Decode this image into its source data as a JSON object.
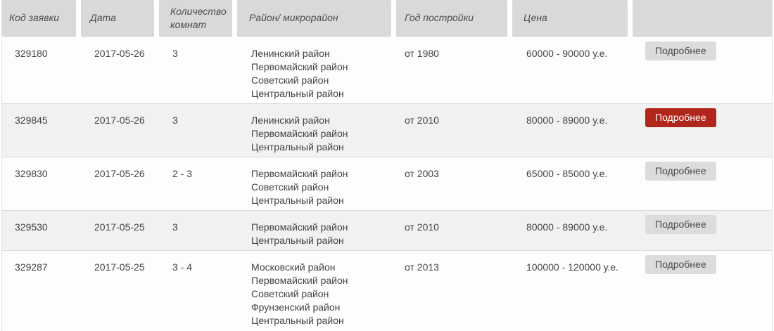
{
  "colors": {
    "accent_red": "#b1261a",
    "header_cell_bg": "#d9d9d9",
    "row_alt_bg": "#f1f1f1"
  },
  "table": {
    "headers": [
      {
        "label": "Код заявки"
      },
      {
        "label": "Дата"
      },
      {
        "label": "Количество комнат"
      },
      {
        "label": "Район/ микрорайон"
      },
      {
        "label": "Год постройки"
      },
      {
        "label": "Цена"
      },
      {
        "label": ""
      }
    ],
    "details_button_label": "Подробнее",
    "rows": [
      {
        "code": "329180",
        "date": "2017-05-26",
        "rooms": "3",
        "districts": [
          "Ленинский район",
          "Первомайский район",
          "Советский район",
          "Центральный район"
        ],
        "year": "от 1980",
        "price": "60000 - 90000 у.е.",
        "highlighted": false
      },
      {
        "code": "329845",
        "date": "2017-05-26",
        "rooms": "3",
        "districts": [
          "Ленинский район",
          "Первомайский район",
          "Центральный район"
        ],
        "year": "от 2010",
        "price": "80000 - 89000 у.е.",
        "highlighted": true
      },
      {
        "code": "329830",
        "date": "2017-05-26",
        "rooms": "2 - 3",
        "districts": [
          "Первомайский район",
          "Советский район",
          "Центральный район"
        ],
        "year": "от 2003",
        "price": "65000 - 85000 у.е.",
        "highlighted": false
      },
      {
        "code": "329530",
        "date": "2017-05-25",
        "rooms": "3",
        "districts": [
          "Первомайский район",
          "Центральный район"
        ],
        "year": "от 2010",
        "price": "80000 - 89000 у.е.",
        "highlighted": false
      },
      {
        "code": "329287",
        "date": "2017-05-25",
        "rooms": "3 - 4",
        "districts": [
          "Московский район",
          "Первомайский район",
          "Советский район",
          "Фрунзенский район",
          "Центральный район"
        ],
        "year": "от 2013",
        "price": "100000 - 120000 у.е.",
        "highlighted": false
      }
    ]
  }
}
